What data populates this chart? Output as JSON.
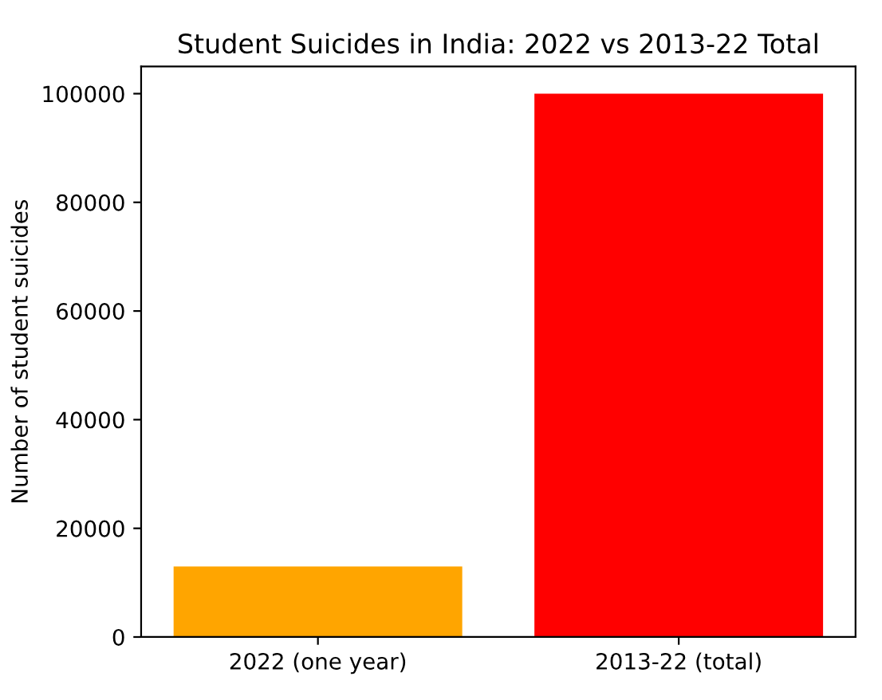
{
  "chart_data": {
    "type": "bar",
    "title": "Student Suicides in India: 2022 vs 2013-22 Total",
    "ylabel": "Number of student suicides",
    "categories": [
      "2022 (one year)",
      "2013-22 (total)"
    ],
    "values": [
      13000,
      100000
    ],
    "colors": [
      "#ffa500",
      "#ff0000"
    ],
    "ylim": [
      0,
      105000
    ],
    "yticks": [
      0,
      20000,
      40000,
      60000,
      80000,
      100000
    ],
    "grid": false
  }
}
